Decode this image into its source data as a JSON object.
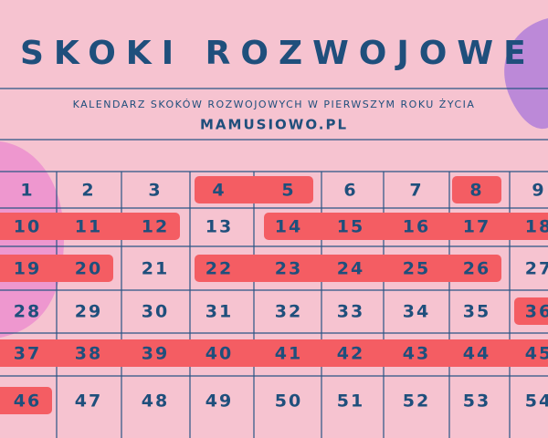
{
  "header": {
    "title": "SKOKI ROZWOJOWE",
    "subtitle": "KALENDARZ SKOKÓW ROZWOJOWYCH W PIERWSZYM ROKU ŻYCIA",
    "site": "MAMUSIOWO.PL"
  },
  "calendar": {
    "highlight_color": "#f45d63",
    "rows": [
      [
        {
          "label": "1",
          "leap": false
        },
        {
          "label": "2",
          "leap": false
        },
        {
          "label": "3",
          "leap": false
        },
        {
          "label": "4",
          "leap": true
        },
        {
          "label": "5",
          "leap": true
        },
        {
          "label": "6",
          "leap": false
        },
        {
          "label": "7",
          "leap": false
        },
        {
          "label": "8",
          "leap": true
        },
        {
          "label": "9",
          "leap": false
        }
      ],
      [
        {
          "label": "10",
          "leap": true
        },
        {
          "label": "11",
          "leap": true
        },
        {
          "label": "12",
          "leap": true
        },
        {
          "label": "13",
          "leap": false
        },
        {
          "label": "14",
          "leap": true
        },
        {
          "label": "15",
          "leap": true
        },
        {
          "label": "16",
          "leap": true
        },
        {
          "label": "17",
          "leap": true
        },
        {
          "label": "18",
          "leap": true
        }
      ],
      [
        {
          "label": "19",
          "leap": true
        },
        {
          "label": "20",
          "leap": true
        },
        {
          "label": "21",
          "leap": false
        },
        {
          "label": "22",
          "leap": true
        },
        {
          "label": "23",
          "leap": true
        },
        {
          "label": "24",
          "leap": true
        },
        {
          "label": "25",
          "leap": true
        },
        {
          "label": "26",
          "leap": true
        },
        {
          "label": "27",
          "leap": false
        }
      ],
      [
        {
          "label": "28",
          "leap": false
        },
        {
          "label": "29",
          "leap": false
        },
        {
          "label": "30",
          "leap": false
        },
        {
          "label": "31",
          "leap": false
        },
        {
          "label": "32",
          "leap": false
        },
        {
          "label": "33",
          "leap": false
        },
        {
          "label": "34",
          "leap": false
        },
        {
          "label": "35",
          "leap": false
        },
        {
          "label": "36",
          "leap": true
        }
      ],
      [
        {
          "label": "37",
          "leap": true
        },
        {
          "label": "38",
          "leap": true
        },
        {
          "label": "39",
          "leap": true
        },
        {
          "label": "40",
          "leap": true
        },
        {
          "label": "41",
          "leap": true
        },
        {
          "label": "42",
          "leap": true
        },
        {
          "label": "43",
          "leap": true
        },
        {
          "label": "44",
          "leap": true
        },
        {
          "label": "45",
          "leap": true
        }
      ],
      [
        {
          "label": "46",
          "leap": true
        },
        {
          "label": "47",
          "leap": false
        },
        {
          "label": "48",
          "leap": false
        },
        {
          "label": "49",
          "leap": false
        },
        {
          "label": "50",
          "leap": false
        },
        {
          "label": "51",
          "leap": false
        },
        {
          "label": "52",
          "leap": false
        },
        {
          "label": "53",
          "leap": false
        },
        {
          "label": "54",
          "leap": false
        }
      ]
    ]
  }
}
